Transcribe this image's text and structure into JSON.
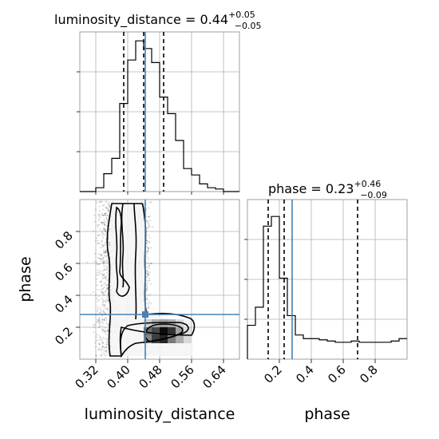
{
  "chart_data": {
    "type": "corner",
    "parameters": [
      "luminosity_distance",
      "phase"
    ],
    "truths": {
      "luminosity_distance": 0.444,
      "phase": 0.28
    },
    "titles": [
      {
        "param": "luminosity_distance",
        "label": "luminosity_distance = 0.44",
        "sup": "+0.05",
        "sub": "−0.05"
      },
      {
        "param": "phase",
        "label": "phase = 0.23",
        "sup": "+0.46",
        "sub": "−0.09"
      }
    ],
    "axis_labels": {
      "x1": "luminosity_distance",
      "x2": "phase",
      "y2": "phase"
    },
    "luminosity_distance": {
      "range": [
        0.28,
        0.68
      ],
      "ticks": [
        "0.32",
        "0.40",
        "0.48",
        "0.56",
        "0.64"
      ],
      "tick_values": [
        0.32,
        0.4,
        0.48,
        0.56,
        0.64
      ],
      "quantiles": [
        0.39,
        0.44,
        0.49
      ],
      "hist_bin_edges": [
        0.28,
        0.3,
        0.32,
        0.34,
        0.36,
        0.38,
        0.4,
        0.42,
        0.44,
        0.46,
        0.48,
        0.5,
        0.52,
        0.54,
        0.56,
        0.58,
        0.6,
        0.62,
        0.64,
        0.66,
        0.68
      ],
      "hist_counts": [
        0,
        0,
        3,
        14,
        26,
        69,
        103,
        118,
        112,
        101,
        74,
        61,
        40,
        18,
        13,
        6,
        3,
        2,
        0,
        0
      ],
      "hist_ymax": 125
    },
    "phase": {
      "range": [
        0.0,
        1.0
      ],
      "ticks": [
        "0.2",
        "0.4",
        "0.6",
        "0.8"
      ],
      "tick_values": [
        0.2,
        0.4,
        0.6,
        0.8
      ],
      "quantiles": [
        0.13,
        0.23,
        0.69
      ],
      "hist_bin_edges": [
        0.0,
        0.05,
        0.1,
        0.15,
        0.2,
        0.25,
        0.3,
        0.35,
        0.4,
        0.45,
        0.5,
        0.55,
        0.6,
        0.65,
        0.7,
        0.75,
        0.8,
        0.85,
        0.9,
        0.95,
        1.0
      ],
      "hist_counts": [
        28,
        43,
        110,
        118,
        67,
        36,
        20,
        17,
        17,
        16,
        15,
        14,
        14,
        15,
        14,
        14,
        14,
        14,
        15,
        17
      ],
      "hist_ymax": 132
    },
    "density_2d": {
      "x_bin_edges": [
        0.44,
        0.46,
        0.48,
        0.5,
        0.52,
        0.54,
        0.56
      ],
      "y_bin_edges": [
        0.1,
        0.15,
        0.2,
        0.25
      ],
      "cells": [
        [
          0.45,
          0.75,
          0.85,
          0.5,
          0.3,
          0.12
        ],
        [
          0.55,
          0.7,
          0.95,
          0.8,
          0.35,
          0.1
        ],
        [
          0.15,
          0.3,
          0.35,
          0.3,
          0.15,
          0.05
        ]
      ]
    }
  }
}
